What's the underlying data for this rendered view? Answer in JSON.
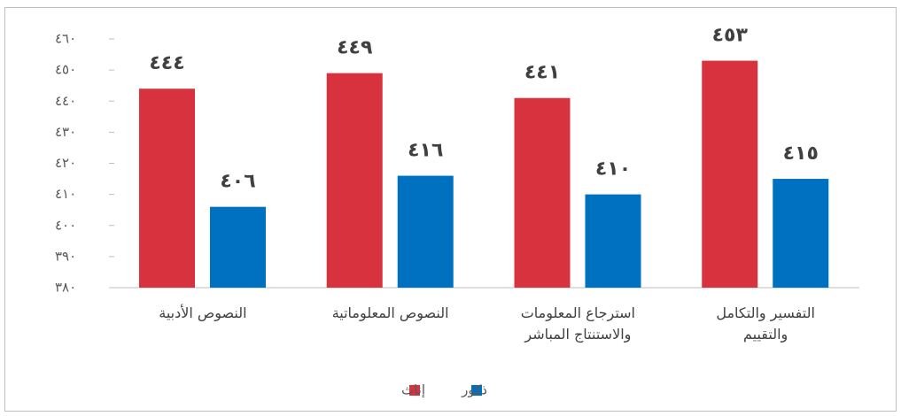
{
  "chart_data": {
    "type": "bar",
    "categories": [
      "النصوص الأدبية",
      "النصوص المعلوماتية",
      "استرجاع المعلومات\nوالاستنتاج المباشر",
      "التفسير والتكامل\nوالتقييم"
    ],
    "series": [
      {
        "name": "إناث",
        "color": "#d9323f",
        "values": [
          444,
          449,
          441,
          453
        ],
        "value_labels": [
          "٤٤٤",
          "٤٤٩",
          "٤٤١",
          "٤٥٣"
        ]
      },
      {
        "name": "ذكور",
        "color": "#0070c0",
        "values": [
          406,
          416,
          410,
          415
        ],
        "value_labels": [
          "٤٠٦",
          "٤١٦",
          "٤١٠",
          "٤١٥"
        ]
      }
    ],
    "ylim": [
      380,
      460
    ],
    "yticks": [
      {
        "value": 380,
        "label": "٣٨٠"
      },
      {
        "value": 390,
        "label": "٣٩٠"
      },
      {
        "value": 400,
        "label": "٤٠٠"
      },
      {
        "value": 410,
        "label": "٤١٠"
      },
      {
        "value": 420,
        "label": "٤٢٠"
      },
      {
        "value": 430,
        "label": "٤٣٠"
      },
      {
        "value": 440,
        "label": "٤٤٠"
      },
      {
        "value": 450,
        "label": "٤٥٠"
      },
      {
        "value": 460,
        "label": "٤٦٠"
      }
    ],
    "grid": false,
    "legend": "bottom"
  }
}
